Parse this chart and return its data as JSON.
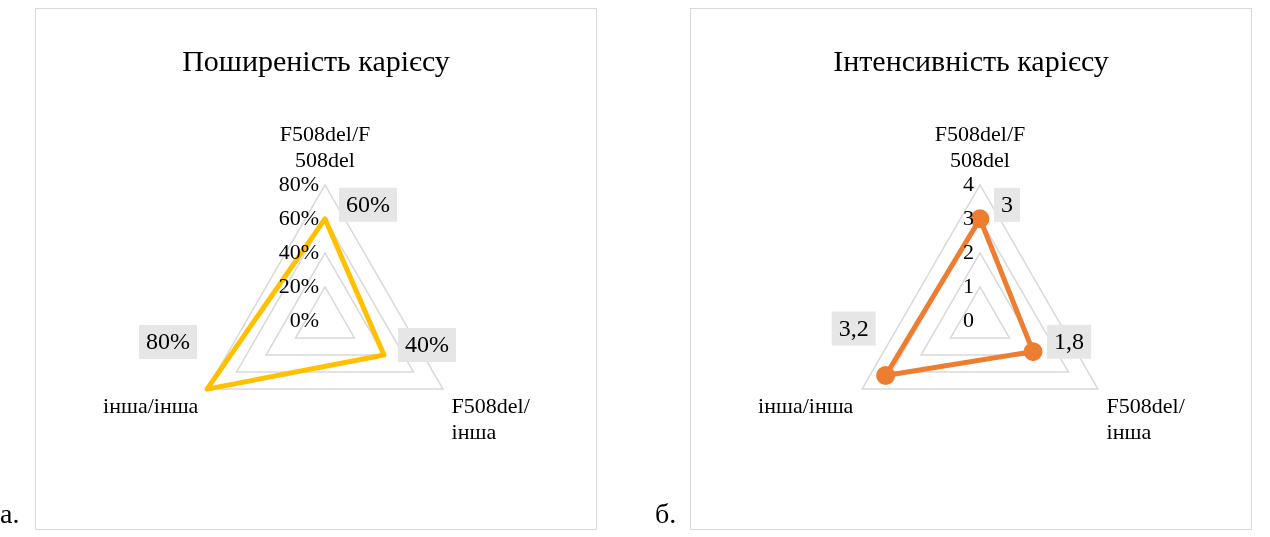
{
  "chart_data": [
    {
      "type": "radar",
      "title": "Поширеність карієсу",
      "categories": [
        "F508del/F\n508del",
        "F508del/\nінша",
        "інша/інша"
      ],
      "ylim": [
        0,
        80
      ],
      "yticks": [
        {
          "value": 0,
          "label": "0%"
        },
        {
          "value": 20,
          "label": "20%"
        },
        {
          "value": 40,
          "label": "40%"
        },
        {
          "value": 60,
          "label": "60%"
        },
        {
          "value": 80,
          "label": "80%"
        }
      ],
      "grid": true,
      "marker": "none",
      "annotations": [
        "а."
      ],
      "series": [
        {
          "color": "#ffc000",
          "values": [
            60,
            40,
            80
          ],
          "value_labels": [
            "60%",
            "40%",
            "80%"
          ]
        }
      ]
    },
    {
      "type": "radar",
      "title": "Інтенсивність карієсу",
      "categories": [
        "F508del/F\n508del",
        "F508del/\nінша",
        "інша/інша"
      ],
      "ylim": [
        0,
        4
      ],
      "yticks": [
        0,
        1,
        2,
        3,
        4
      ],
      "grid": true,
      "marker": "circle",
      "annotations": [
        "б."
      ],
      "series": [
        {
          "color": "#ed7d31",
          "values": [
            3,
            1.8,
            3.2
          ],
          "value_labels": [
            "3",
            "1,8",
            "3,2"
          ]
        }
      ]
    }
  ]
}
